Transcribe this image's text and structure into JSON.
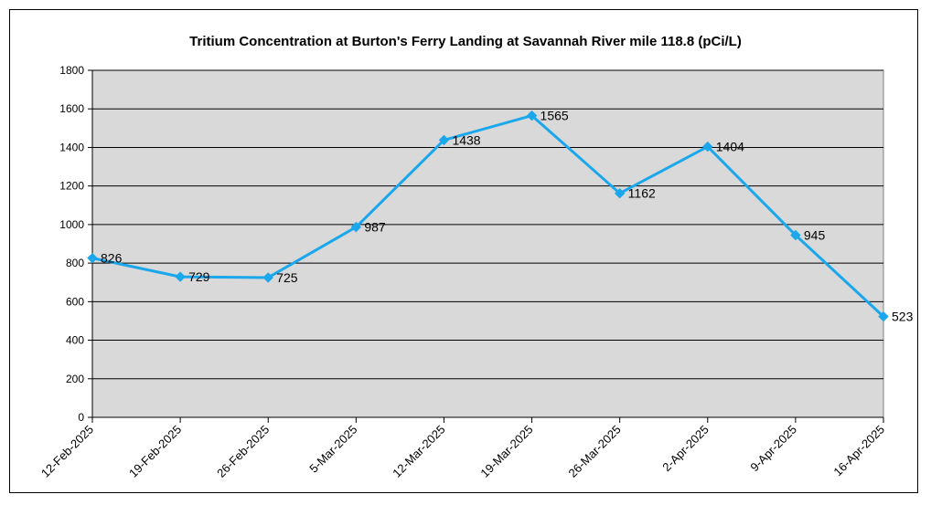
{
  "chart_data": {
    "type": "line",
    "title": "Tritium Concentration at Burton's Ferry Landing at Savannah River mile 118.8 (pCi/L)",
    "xlabel": "",
    "ylabel": "",
    "categories": [
      "12-Feb-2025",
      "19-Feb-2025",
      "26-Feb-2025",
      "5-Mar-2025",
      "12-Mar-2025",
      "19-Mar-2025",
      "26-Mar-2025",
      "2-Apr-2025",
      "9-Apr-2025",
      "16-Apr-2025"
    ],
    "series": [
      {
        "values": [
          826,
          729,
          725,
          987,
          1438,
          1565,
          1162,
          1404,
          945,
          523
        ]
      }
    ],
    "data_labels": [
      "826",
      "729",
      "725",
      "987",
      "1438",
      "1565",
      "1162",
      "1404",
      "945",
      "523"
    ],
    "ylim": [
      0,
      1800
    ],
    "yticks": [
      "0",
      "200",
      "400",
      "600",
      "800",
      "1000",
      "1200",
      "1400",
      "1600",
      "1800"
    ],
    "grid": true,
    "legend": "none",
    "colors": {
      "line": "#1aa7ec",
      "plot_background": "#d9d9d9",
      "gridline": "#000000"
    }
  }
}
